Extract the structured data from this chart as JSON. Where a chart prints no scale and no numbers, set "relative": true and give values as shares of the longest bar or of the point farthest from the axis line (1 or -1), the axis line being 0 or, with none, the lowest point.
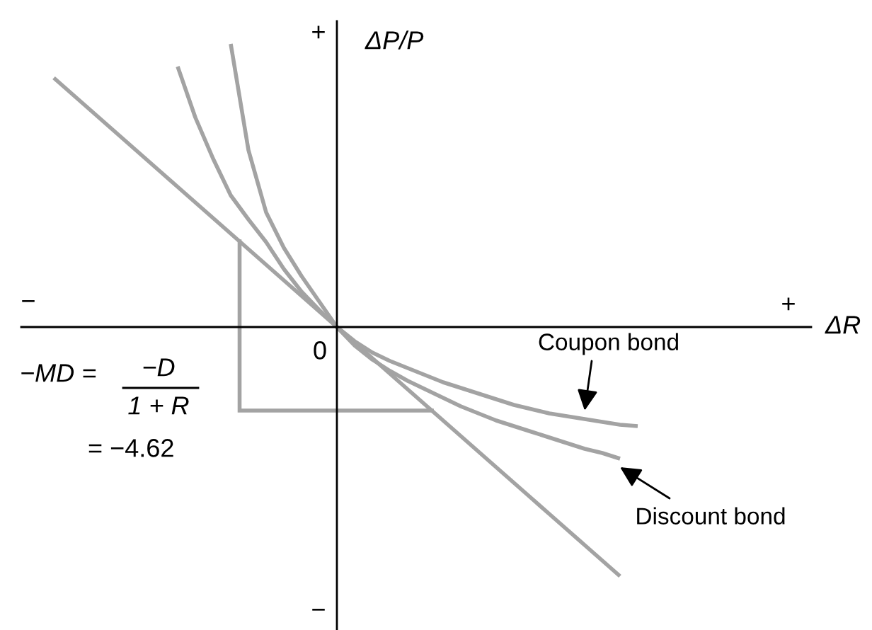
{
  "chart_data": {
    "type": "line",
    "relative": true,
    "ylabel": "ΔP/P",
    "categories": [
      null,
      null,
      null,
      null,
      null,
      null,
      null,
      null,
      null,
      null,
      null,
      null,
      null,
      null,
      null,
      null,
      null,
      null,
      null,
      null,
      null,
      null,
      null,
      null,
      null,
      null,
      null,
      null,
      null,
      null,
      null,
      null,
      null,
      null
    ],
    "series": [
      {
        "color": "#a3a3a3",
        "values": [
          0.88,
          0.825,
          0.77,
          0.715,
          0.66,
          0.605,
          0.55,
          0.495,
          0.44,
          0.385,
          0.33,
          0.275,
          0.22,
          0.165,
          0.11,
          0.055,
          0,
          -0.055,
          -0.11,
          -0.165,
          -0.22,
          -0.275,
          -0.33,
          -0.385,
          -0.44,
          -0.495,
          -0.55,
          -0.605,
          -0.66,
          -0.715,
          -0.77,
          -0.825,
          -0.88,
          null
        ]
      },
      {
        "name": "Coupon bond",
        "color": "#a3a3a3",
        "values": [
          null,
          null,
          null,
          null,
          null,
          null,
          null,
          null,
          null,
          null,
          1.0,
          0.625,
          0.405,
          0.28,
          0.18,
          0.09,
          0,
          -0.05,
          -0.09,
          -0.12,
          -0.145,
          -0.17,
          -0.195,
          -0.215,
          -0.235,
          -0.255,
          -0.275,
          -0.29,
          -0.305,
          -0.315,
          -0.325,
          -0.335,
          -0.345,
          -0.35
        ]
      },
      {
        "name": "Discount bond",
        "color": "#a3a3a3",
        "values": [
          null,
          null,
          null,
          null,
          null,
          null,
          null,
          0.92,
          0.74,
          0.595,
          0.465,
          0.38,
          0.3,
          0.205,
          0.125,
          0.06,
          0,
          -0.065,
          -0.115,
          -0.155,
          -0.19,
          -0.22,
          -0.25,
          -0.28,
          -0.305,
          -0.33,
          -0.35,
          -0.37,
          -0.39,
          -0.41,
          -0.43,
          -0.445,
          -0.465,
          null
        ]
      }
    ],
    "annotations": [
      "+",
      "−",
      "+",
      "−",
      "0",
      "−MD =",
      "−D",
      "1 + R",
      "= −4.62",
      "ΔR"
    ],
    "legend": false,
    "marker": "none",
    "line_style": "solid"
  }
}
